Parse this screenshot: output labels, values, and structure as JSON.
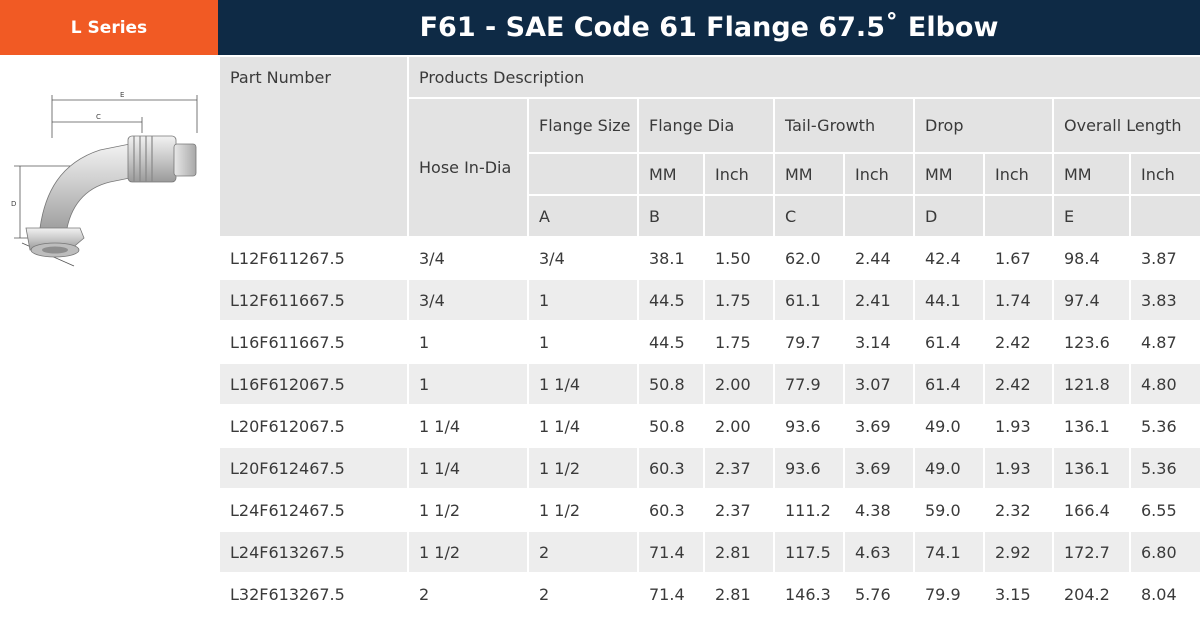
{
  "series_tab": "L Series",
  "title": "F61 - SAE Code 61 Flange 67.5˚ Elbow",
  "diagram_labels": {
    "e": "E",
    "c": "C",
    "d": "D",
    "b": "B"
  },
  "table": {
    "part_number_header": "Part Number",
    "products_description_header": "Products Description",
    "hose_in_dia_header": "Hose In-Dia",
    "flange_size_header": "Flange Size",
    "flange_dia_header": "Flange Dia",
    "tail_growth_header": "Tail-Growth",
    "drop_header": "Drop",
    "overall_length_header": "Overall Length",
    "units": {
      "mm": "MM",
      "inch": "Inch"
    },
    "letters": {
      "flange_size": "A",
      "flange_dia": "B",
      "tail_growth": "C",
      "drop": "D",
      "overall_length": "E"
    },
    "rows": [
      {
        "part": "L12F611267.5",
        "hose": "3/4",
        "flange": "3/4",
        "fd_mm": "38.1",
        "fd_in": "1.50",
        "tg_mm": "62.0",
        "tg_in": "2.44",
        "dr_mm": "42.4",
        "dr_in": "1.67",
        "ol_mm": "98.4",
        "ol_in": "3.87"
      },
      {
        "part": "L12F611667.5",
        "hose": "3/4",
        "flange": "1",
        "fd_mm": "44.5",
        "fd_in": "1.75",
        "tg_mm": "61.1",
        "tg_in": "2.41",
        "dr_mm": "44.1",
        "dr_in": "1.74",
        "ol_mm": "97.4",
        "ol_in": "3.83"
      },
      {
        "part": "L16F611667.5",
        "hose": "1",
        "flange": "1",
        "fd_mm": "44.5",
        "fd_in": "1.75",
        "tg_mm": "79.7",
        "tg_in": "3.14",
        "dr_mm": "61.4",
        "dr_in": "2.42",
        "ol_mm": "123.6",
        "ol_in": "4.87"
      },
      {
        "part": "L16F612067.5",
        "hose": "1",
        "flange": "1 1/4",
        "fd_mm": "50.8",
        "fd_in": "2.00",
        "tg_mm": "77.9",
        "tg_in": "3.07",
        "dr_mm": "61.4",
        "dr_in": "2.42",
        "ol_mm": "121.8",
        "ol_in": "4.80"
      },
      {
        "part": "L20F612067.5",
        "hose": "1 1/4",
        "flange": "1 1/4",
        "fd_mm": "50.8",
        "fd_in": "2.00",
        "tg_mm": "93.6",
        "tg_in": "3.69",
        "dr_mm": "49.0",
        "dr_in": "1.93",
        "ol_mm": "136.1",
        "ol_in": "5.36"
      },
      {
        "part": "L20F612467.5",
        "hose": "1 1/4",
        "flange": "1 1/2",
        "fd_mm": "60.3",
        "fd_in": "2.37",
        "tg_mm": "93.6",
        "tg_in": "3.69",
        "dr_mm": "49.0",
        "dr_in": "1.93",
        "ol_mm": "136.1",
        "ol_in": "5.36"
      },
      {
        "part": "L24F612467.5",
        "hose": "1 1/2",
        "flange": "1 1/2",
        "fd_mm": "60.3",
        "fd_in": "2.37",
        "tg_mm": "111.2",
        "tg_in": "4.38",
        "dr_mm": "59.0",
        "dr_in": "2.32",
        "ol_mm": "166.4",
        "ol_in": "6.55"
      },
      {
        "part": "L24F613267.5",
        "hose": "1 1/2",
        "flange": "2",
        "fd_mm": "71.4",
        "fd_in": "2.81",
        "tg_mm": "117.5",
        "tg_in": "4.63",
        "dr_mm": "74.1",
        "dr_in": "2.92",
        "ol_mm": "172.7",
        "ol_in": "6.80"
      },
      {
        "part": "L32F613267.5",
        "hose": "2",
        "flange": "2",
        "fd_mm": "71.4",
        "fd_in": "2.81",
        "tg_mm": "146.3",
        "tg_in": "5.76",
        "dr_mm": "79.9",
        "dr_in": "3.15",
        "ol_mm": "204.2",
        "ol_in": "8.04"
      }
    ]
  },
  "colors": {
    "accent": "#f15a24",
    "title_bg": "#0e2a45",
    "header_bg": "#e3e3e3",
    "row_alt_bg": "#ededed"
  }
}
